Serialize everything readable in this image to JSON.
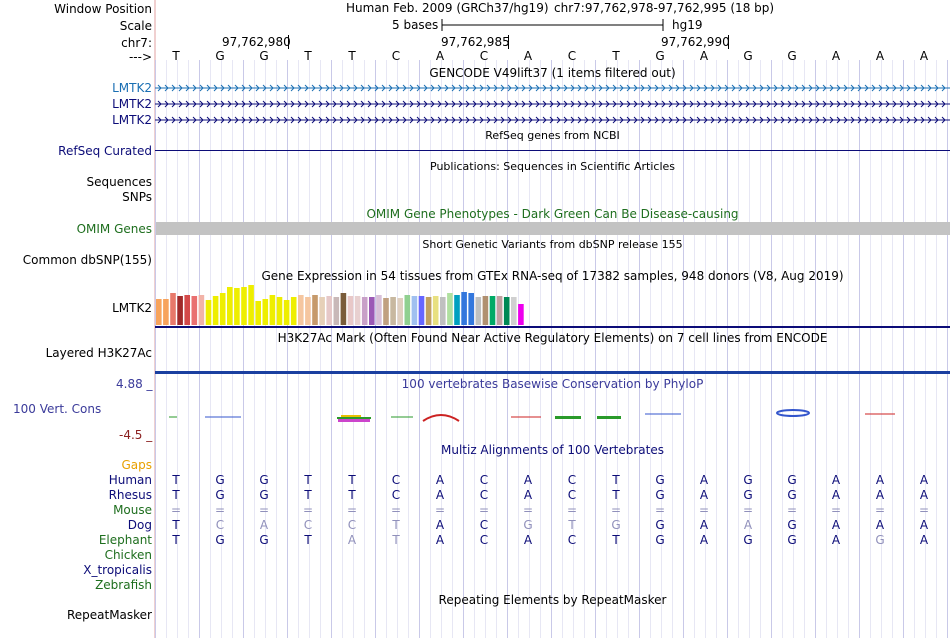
{
  "header": {
    "window_position_label": "Window Position",
    "assembly_title": "Human Feb. 2009 (GRCh37/hg19)",
    "position_range": "chr7:97,762,978-97,762,995 (18 bp)",
    "scale_label": "Scale",
    "scale_value": "5 bases",
    "scale_db": "hg19",
    "chrom_label": "chr7:",
    "strand_label": "--->",
    "ticks": [
      "97,762,980",
      "97,762,985",
      "97,762,990"
    ]
  },
  "sequence": [
    "T",
    "G",
    "G",
    "T",
    "T",
    "C",
    "A",
    "C",
    "A",
    "C",
    "T",
    "G",
    "A",
    "G",
    "G",
    "A",
    "A",
    "A"
  ],
  "gencode": {
    "title": "GENCODE V49lift37 (1 items filtered out)",
    "genes": [
      "LMTK2",
      "LMTK2",
      "LMTK2"
    ],
    "color": "#1a6fb3"
  },
  "refseq": {
    "title": "RefSeq genes from NCBI",
    "label": "RefSeq Curated",
    "color": "#0c0c78"
  },
  "publications": {
    "title": "Publications: Sequences in Scientific Articles",
    "labels": [
      "Sequences",
      "SNPs"
    ]
  },
  "omim": {
    "title": "OMIM Gene Phenotypes - Dark Green Can Be Disease-causing",
    "label": "OMIM Genes",
    "color": "#1e6e1e"
  },
  "dbsnp": {
    "title": "Short Genetic Variants from dbSNP release 155",
    "label": "Common dbSNP(155)"
  },
  "gtex": {
    "title": "Gene Expression in 54 tissues from GTEx RNA-seq of 17382 samples, 948 donors (V8, Aug 2019)",
    "label": "LMTK2",
    "bars": [
      {
        "v": 0.62,
        "c": "#f7a35c"
      },
      {
        "v": 0.62,
        "c": "#f7a35c"
      },
      {
        "v": 0.75,
        "c": "#e8796b"
      },
      {
        "v": 0.68,
        "c": "#a02a2a"
      },
      {
        "v": 0.72,
        "c": "#d44a4a"
      },
      {
        "v": 0.7,
        "c": "#e97070"
      },
      {
        "v": 0.72,
        "c": "#f2b3a8"
      },
      {
        "v": 0.6,
        "c": "#eeee00"
      },
      {
        "v": 0.7,
        "c": "#eeee00"
      },
      {
        "v": 0.75,
        "c": "#eeee00"
      },
      {
        "v": 0.9,
        "c": "#eeee00"
      },
      {
        "v": 0.88,
        "c": "#eeee00"
      },
      {
        "v": 0.9,
        "c": "#eeee00"
      },
      {
        "v": 0.95,
        "c": "#eeee00"
      },
      {
        "v": 0.58,
        "c": "#eeee00"
      },
      {
        "v": 0.62,
        "c": "#eeee00"
      },
      {
        "v": 0.72,
        "c": "#eeee00"
      },
      {
        "v": 0.66,
        "c": "#eeee00"
      },
      {
        "v": 0.6,
        "c": "#eeee00"
      },
      {
        "v": 0.66,
        "c": "#eeee00"
      },
      {
        "v": 0.72,
        "c": "#f5c6a0"
      },
      {
        "v": 0.66,
        "c": "#f5c6a0"
      },
      {
        "v": 0.72,
        "c": "#c69a6b"
      },
      {
        "v": 0.66,
        "c": "#e6d0b8"
      },
      {
        "v": 0.68,
        "c": "#e6c8c8"
      },
      {
        "v": 0.66,
        "c": "#c8b8b8"
      },
      {
        "v": 0.76,
        "c": "#7a5c3a"
      },
      {
        "v": 0.68,
        "c": "#e8c8c8"
      },
      {
        "v": 0.68,
        "c": "#e8d0d0"
      },
      {
        "v": 0.66,
        "c": "#c8a0c8"
      },
      {
        "v": 0.66,
        "c": "#9b59b6"
      },
      {
        "v": 0.72,
        "c": "#d8c0d8"
      },
      {
        "v": 0.64,
        "c": "#c0a080"
      },
      {
        "v": 0.66,
        "c": "#c8b8a0"
      },
      {
        "v": 0.64,
        "c": "#e0d0c0"
      },
      {
        "v": 0.72,
        "c": "#90d090"
      },
      {
        "v": 0.7,
        "c": "#a0c0f0"
      },
      {
        "v": 0.7,
        "c": "#6666ff"
      },
      {
        "v": 0.66,
        "c": "#c0a060"
      },
      {
        "v": 0.7,
        "c": "#e8e080"
      },
      {
        "v": 0.66,
        "c": "#c0c0c0"
      },
      {
        "v": 0.76,
        "c": "#b0e0a0"
      },
      {
        "v": 0.72,
        "c": "#00a0c0"
      },
      {
        "v": 0.78,
        "c": "#3377dd"
      },
      {
        "v": 0.76,
        "c": "#3377dd"
      },
      {
        "v": 0.66,
        "c": "#c0c0c0"
      },
      {
        "v": 0.7,
        "c": "#b09070"
      },
      {
        "v": 0.68,
        "c": "#00aa66"
      },
      {
        "v": 0.68,
        "c": "#c0a0a0"
      },
      {
        "v": 0.66,
        "c": "#008855"
      },
      {
        "v": 0.66,
        "c": "#d0d0d0"
      },
      {
        "v": 0.5,
        "c": "#ee00ee"
      }
    ]
  },
  "h3k27ac": {
    "title": "H3K27Ac Mark (Often Found Near Active Regulatory Elements) on 7 cell lines from ENCODE",
    "label": "Layered H3K27Ac"
  },
  "phylop": {
    "title": "100 vertebrates Basewise Conservation by PhyloP",
    "label": "100 Vert. Cons",
    "ymax": "4.88 _",
    "ymin": "-4.5 _"
  },
  "multiz": {
    "title": "Multiz Alignments of 100 Vertebrates",
    "gaps_label": "Gaps",
    "species": [
      {
        "name": "Human",
        "color": "#0c0c78",
        "seq": [
          "T",
          "G",
          "G",
          "T",
          "T",
          "C",
          "A",
          "C",
          "A",
          "C",
          "T",
          "G",
          "A",
          "G",
          "G",
          "A",
          "A",
          "A"
        ],
        "mask": []
      },
      {
        "name": "Rhesus",
        "color": "#0c0c78",
        "seq": [
          "T",
          "G",
          "G",
          "T",
          "T",
          "C",
          "A",
          "C",
          "A",
          "C",
          "T",
          "G",
          "A",
          "G",
          "G",
          "A",
          "A",
          "A"
        ],
        "mask": []
      },
      {
        "name": "Mouse",
        "color": "#1e6e1e",
        "seq": [
          "=",
          "=",
          "=",
          "=",
          "=",
          "=",
          "=",
          "=",
          "=",
          "=",
          "=",
          "=",
          "=",
          "=",
          "=",
          "=",
          "=",
          "="
        ],
        "mask": [
          0,
          1,
          2,
          3,
          4,
          5,
          6,
          7,
          8,
          9,
          10,
          11,
          12,
          13,
          14,
          15,
          16,
          17
        ]
      },
      {
        "name": "Dog",
        "color": "#0c0c78",
        "seq": [
          "T",
          "C",
          "A",
          "C",
          "C",
          "T",
          "A",
          "C",
          "G",
          "T",
          "G",
          "G",
          "A",
          "A",
          "G",
          "A",
          "A",
          "A"
        ],
        "mask": [
          1,
          2,
          3,
          4,
          5,
          8,
          9,
          10,
          13
        ]
      },
      {
        "name": "Elephant",
        "color": "#1e6e1e",
        "seq": [
          "T",
          "G",
          "G",
          "T",
          "A",
          "T",
          "A",
          "C",
          "A",
          "C",
          "T",
          "G",
          "A",
          "G",
          "G",
          "A",
          "G",
          "A"
        ],
        "mask": [
          4,
          5,
          16
        ]
      },
      {
        "name": "Chicken",
        "color": "#1e6e1e",
        "seq": [],
        "mask": []
      },
      {
        "name": "X_tropicalis",
        "color": "#0c0c78",
        "seq": [],
        "mask": []
      },
      {
        "name": "Zebrafish",
        "color": "#1e6e1e",
        "seq": [],
        "mask": []
      }
    ]
  },
  "repeatmasker": {
    "title": "Repeating Elements by RepeatMasker",
    "label": "RepeatMasker"
  }
}
